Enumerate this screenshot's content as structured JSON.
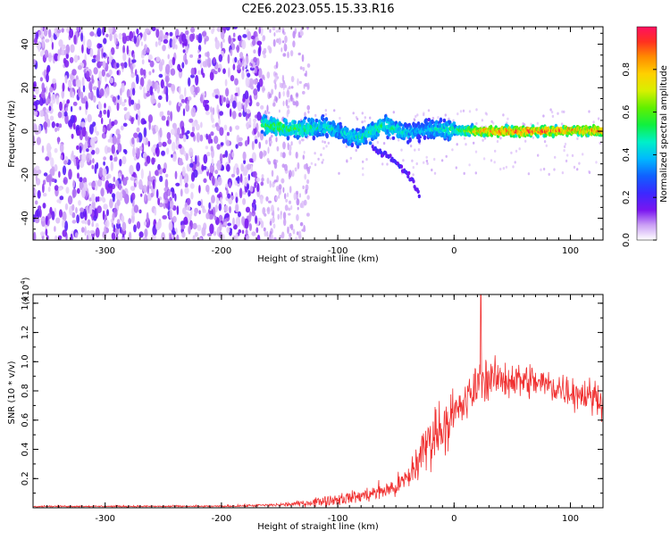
{
  "title": "C2E6.2023.055.15.33.R16",
  "colors": {
    "snr_line": "#f03030",
    "spectrum_ramp": [
      "#ffffff",
      "#e8d6fb",
      "#c99af5",
      "#9d52ef",
      "#7a16f0",
      "#4b22ff",
      "#1850ff",
      "#00b8ff",
      "#00f0c0",
      "#20f020",
      "#a0f000",
      "#f0e800",
      "#ff9a00",
      "#ff3020",
      "#ff1060"
    ]
  },
  "chart_data": [
    {
      "type": "heatmap",
      "title": "C2E6.2023.055.15.33.R16",
      "xlabel": "Height of straight line (km)",
      "ylabel": "Frequency (Hz)",
      "xlim": [
        -362,
        128
      ],
      "ylim": [
        -50,
        48
      ],
      "xticks": [
        -300,
        -200,
        -100,
        0,
        100
      ],
      "yticks": [
        -40,
        -20,
        0,
        20,
        40
      ],
      "grid": false,
      "colorbar": {
        "label": "Normalized spectral amplitude",
        "range": [
          0.0,
          1.0
        ],
        "ticks": [
          0.0,
          0.2,
          0.4,
          0.6,
          0.8
        ]
      },
      "features": {
        "noise_region_x": [
          -362,
          -165
        ],
        "faint_noise_region_x": [
          -165,
          -125
        ],
        "signal_track": {
          "x": [
            -165,
            -150,
            -130,
            -110,
            -100,
            -90,
            -80,
            -70,
            -60,
            -50,
            -40,
            -30,
            -20,
            0,
            20,
            40,
            60,
            80,
            100,
            128
          ],
          "center_frequency_hz": [
            3,
            2,
            1,
            2,
            0,
            -2,
            -3,
            0,
            3,
            1,
            -1,
            0,
            1,
            0.5,
            0,
            0,
            0,
            0,
            0.5,
            0
          ],
          "peak_amplitude": [
            0.55,
            0.6,
            0.55,
            0.5,
            0.45,
            0.5,
            0.5,
            0.55,
            0.55,
            0.5,
            0.45,
            0.4,
            0.45,
            0.55,
            0.85,
            0.95,
            0.95,
            0.95,
            0.9,
            0.9
          ]
        },
        "lower_tail": {
          "x": [
            -70,
            -55,
            -45,
            -35,
            -30
          ],
          "frequency_hz": [
            -8,
            -12,
            -17,
            -23,
            -30
          ]
        }
      }
    },
    {
      "type": "line",
      "xlabel": "Height of straight line (km)",
      "ylabel": "SNR (10 * v/v)",
      "y_multiplier_label": "(x10",
      "y_multiplier_exponent": "4",
      "y_multiplier_close": ")",
      "xlim": [
        -362,
        128
      ],
      "ylim": [
        0,
        1.46
      ],
      "xticks": [
        -300,
        -200,
        -100,
        0,
        100
      ],
      "yticks": [
        0.2,
        0.4,
        0.6,
        0.8,
        1.0,
        1.2,
        1.4
      ],
      "grid": false,
      "series": [
        {
          "x": [
            -362,
            -300,
            -250,
            -200,
            -150,
            -130,
            -120,
            -110,
            -100,
            -90,
            -80,
            -70,
            -60,
            -50,
            -40,
            -35,
            -30,
            -25,
            -20,
            -15,
            -10,
            -5,
            0,
            5,
            10,
            15,
            20,
            25,
            30,
            40,
            50,
            60,
            70,
            80,
            90,
            100,
            110,
            120,
            128
          ],
          "mean": [
            0.01,
            0.01,
            0.01,
            0.01,
            0.02,
            0.03,
            0.04,
            0.05,
            0.06,
            0.07,
            0.08,
            0.1,
            0.12,
            0.14,
            0.2,
            0.26,
            0.34,
            0.42,
            0.48,
            0.52,
            0.56,
            0.6,
            0.63,
            0.68,
            0.72,
            0.78,
            0.85,
            0.88,
            0.88,
            0.88,
            0.88,
            0.87,
            0.86,
            0.84,
            0.82,
            0.8,
            0.78,
            0.76,
            0.75
          ],
          "spread": [
            0.005,
            0.005,
            0.005,
            0.006,
            0.01,
            0.02,
            0.03,
            0.035,
            0.04,
            0.04,
            0.045,
            0.05,
            0.06,
            0.07,
            0.09,
            0.12,
            0.15,
            0.17,
            0.18,
            0.19,
            0.18,
            0.17,
            0.16,
            0.15,
            0.14,
            0.14,
            0.14,
            0.13,
            0.13,
            0.12,
            0.12,
            0.12,
            0.11,
            0.11,
            0.11,
            0.11,
            0.11,
            0.11,
            0.11
          ],
          "peak": {
            "x": 23,
            "y": 1.46
          }
        }
      ]
    }
  ]
}
